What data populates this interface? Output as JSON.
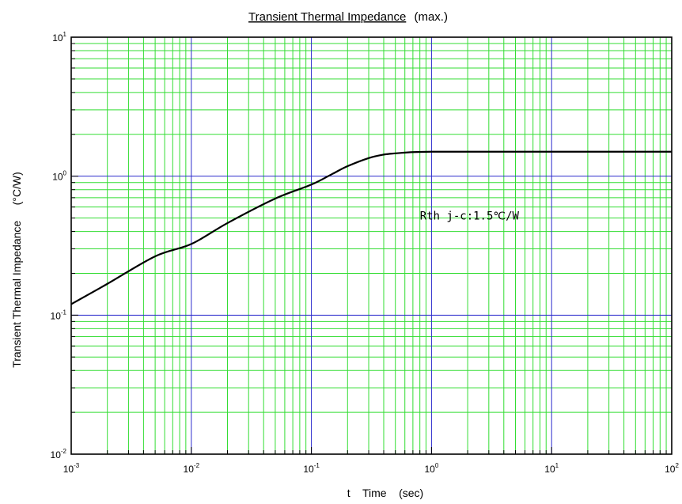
{
  "chart_data": {
    "type": "line",
    "title": "Transient Thermal Impedance",
    "title_suffix": "(max.)",
    "xlabel": "t    Time    (sec)",
    "ylabel": "Transient Thermal Impedance     (°C/W)",
    "x_scale": "log",
    "y_scale": "log",
    "xlim": [
      0.001,
      100
    ],
    "ylim": [
      0.01,
      10
    ],
    "x_ticks": [
      {
        "base": "10",
        "exp": "-3"
      },
      {
        "base": "10",
        "exp": "-2"
      },
      {
        "base": "10",
        "exp": "-1"
      },
      {
        "base": "10",
        "exp": "0"
      },
      {
        "base": "10",
        "exp": "1"
      },
      {
        "base": "10",
        "exp": "2"
      }
    ],
    "y_ticks": [
      {
        "base": "10",
        "exp": "-2"
      },
      {
        "base": "10",
        "exp": "-1"
      },
      {
        "base": "10",
        "exp": "0"
      },
      {
        "base": "10",
        "exp": "1"
      }
    ],
    "grid": true,
    "colors": {
      "major_grid": "#2a2acc",
      "minor_grid": "#33dd33",
      "curve": "#000000"
    },
    "series": [
      {
        "x": [
          0.001,
          0.002,
          0.005,
          0.01,
          0.02,
          0.05,
          0.1,
          0.15,
          0.2,
          0.3,
          0.4,
          0.5,
          0.7,
          1,
          2,
          5,
          10,
          20,
          50,
          100
        ],
        "values": [
          0.12,
          0.168,
          0.265,
          0.325,
          0.46,
          0.69,
          0.87,
          1.04,
          1.18,
          1.35,
          1.43,
          1.46,
          1.49,
          1.5,
          1.5,
          1.5,
          1.5,
          1.5,
          1.5,
          1.5
        ]
      }
    ],
    "annotations": [
      {
        "text": "Rth j-c:1.5℃/W",
        "x": 0.8,
        "y": 0.52
      }
    ]
  }
}
